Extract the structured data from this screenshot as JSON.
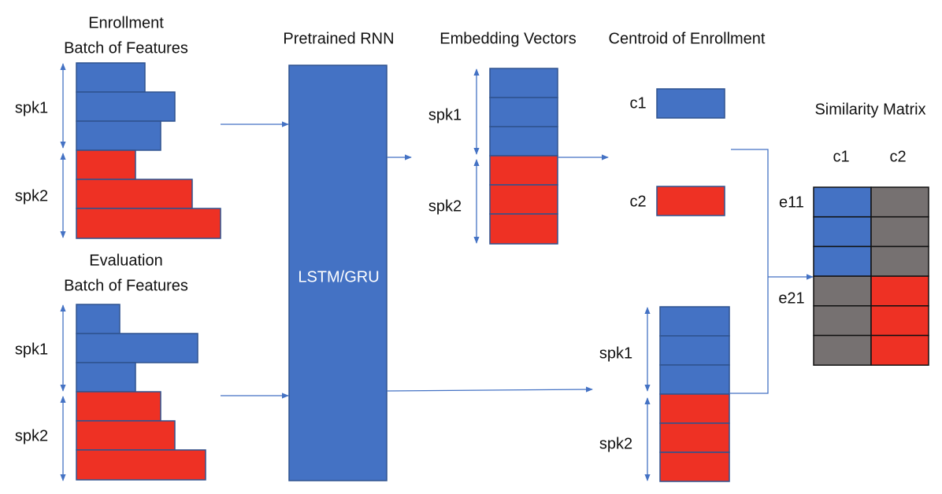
{
  "enrollment": {
    "title": [
      "Enrollment",
      "Batch of Features"
    ],
    "speakers": [
      "spk1",
      "spk2"
    ]
  },
  "evaluation": {
    "title": [
      "Evaluation",
      "Batch of Features"
    ],
    "speakers": [
      "spk1",
      "spk2"
    ]
  },
  "rnn": {
    "title": "Pretrained RNN",
    "label": "LSTM/GRU"
  },
  "embedding": {
    "title": "Embedding Vectors",
    "speakers": [
      "spk1",
      "spk2"
    ]
  },
  "centroid": {
    "title": "Centroid of Enrollment",
    "labels": [
      "c1",
      "c2"
    ]
  },
  "eval_embedding": {
    "speakers": [
      "spk1",
      "spk2"
    ]
  },
  "similarity": {
    "title": "Similarity Matrix",
    "columns": [
      "c1",
      "c2"
    ],
    "rows": [
      "e11",
      "e21"
    ]
  }
}
